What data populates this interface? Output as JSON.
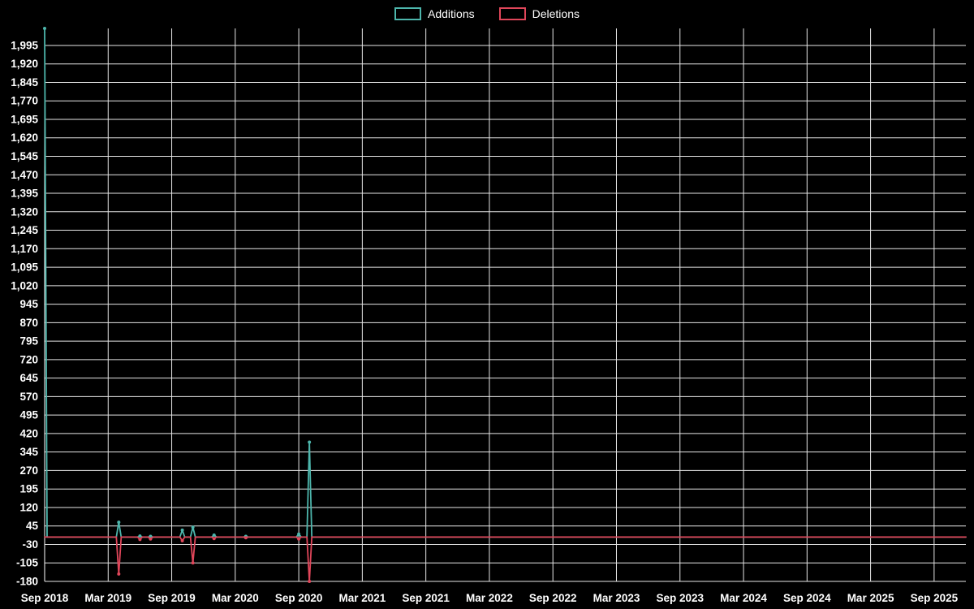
{
  "page": {
    "background": "#000000",
    "text_color": "#ffffff"
  },
  "chart_data": {
    "type": "line",
    "title": "",
    "legend_position": "top-center",
    "grid": true,
    "x_interval": "monthly",
    "x_start": "2018-09",
    "x_end": "2025-12",
    "x_tick_every_months": 6,
    "x_tick_labels": [
      "Sep 2018",
      "Mar 2019",
      "Sep 2019",
      "Mar 2020",
      "Sep 2020",
      "Mar 2021",
      "Sep 2021",
      "Mar 2022",
      "Sep 2022",
      "Mar 2023",
      "Sep 2023",
      "Mar 2024",
      "Sep 2024",
      "Mar 2025",
      "Sep 2025"
    ],
    "y_ticks": [
      -180,
      -105,
      -30,
      45,
      120,
      195,
      270,
      345,
      420,
      495,
      570,
      645,
      720,
      795,
      870,
      945,
      1020,
      1095,
      1170,
      1245,
      1320,
      1395,
      1470,
      1545,
      1620,
      1695,
      1770,
      1845,
      1920,
      1995
    ],
    "ylim": [
      -180,
      2064
    ],
    "colors": {
      "grid": "#e6e6e6",
      "axis": "#ffffff",
      "tick_text": "#ffffff",
      "background": "#000000"
    },
    "series": [
      {
        "name": "Additions",
        "color": "#4db6ac",
        "default": 0,
        "points": {
          "2018-09": 2064,
          "2019-04": 60,
          "2019-06": 4,
          "2019-07": 3,
          "2019-10": 28,
          "2019-11": 40,
          "2020-01": 8,
          "2020-04": 3,
          "2020-09": 12,
          "2020-10": 385
        }
      },
      {
        "name": "Deletions",
        "color": "#e0465a",
        "default": 0,
        "points": {
          "2019-04": -150,
          "2019-06": -10,
          "2019-07": -8,
          "2019-10": -15,
          "2019-11": -105,
          "2020-01": -6,
          "2020-04": -3,
          "2020-09": -8,
          "2020-10": -180
        }
      }
    ]
  }
}
